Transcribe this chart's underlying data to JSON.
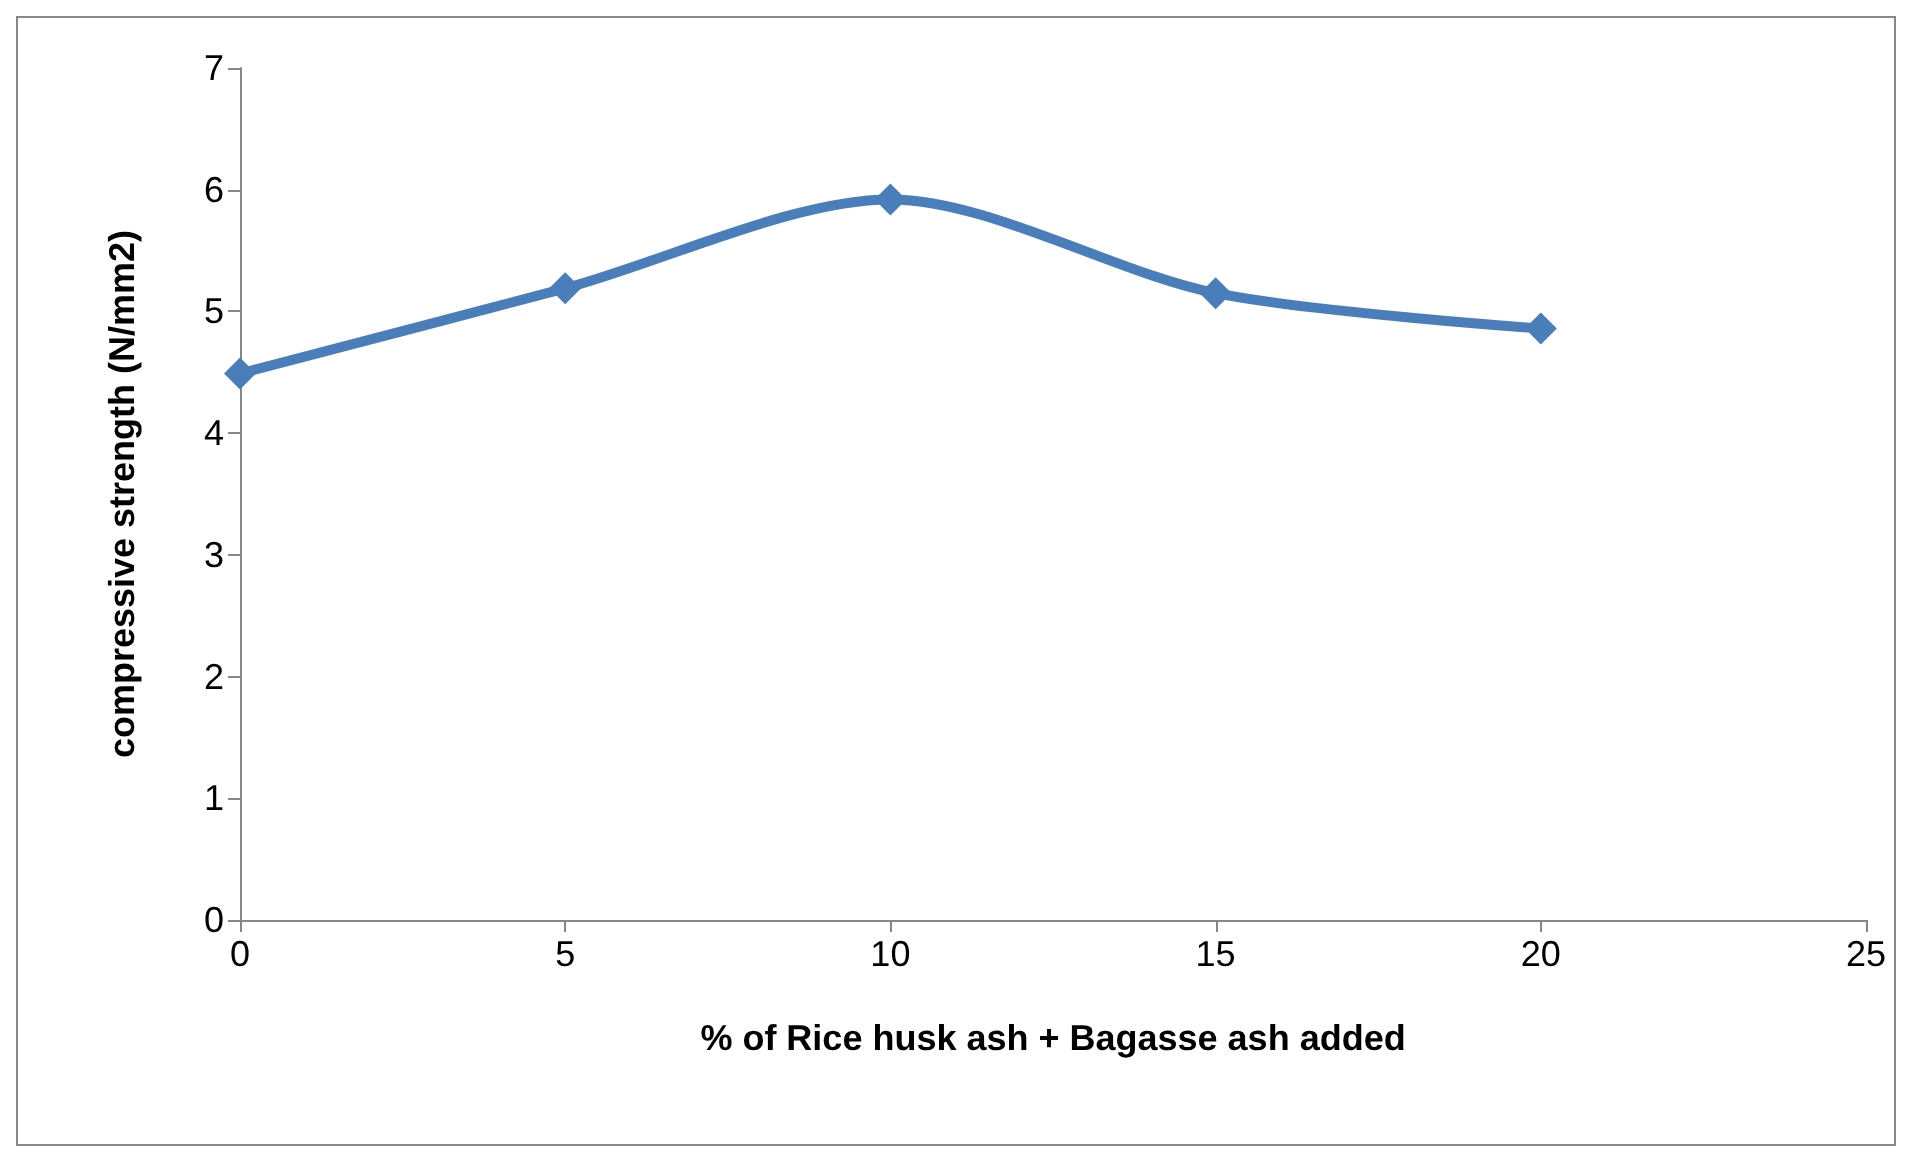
{
  "chart_data": {
    "type": "line",
    "xlabel": "% of Rice husk ash + Bagasse ash added",
    "ylabel": "compressive strength (N/mm2)",
    "x": [
      0,
      5,
      10,
      15,
      20
    ],
    "series": [
      {
        "color": "#4a7ebb",
        "values": [
          4.49,
          5.19,
          5.92,
          5.15,
          4.86
        ]
      }
    ],
    "xlim": [
      0,
      25
    ],
    "xticks": [
      0,
      5,
      10,
      15,
      20,
      25
    ],
    "ylim": [
      0,
      7
    ],
    "yticks": [
      0,
      1,
      2,
      3,
      4,
      5,
      6,
      7
    ],
    "grid": false,
    "marker": "diamond",
    "line_style": "solid"
  }
}
